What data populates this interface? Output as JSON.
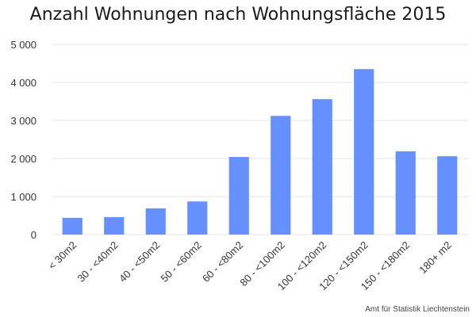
{
  "chart_data": {
    "type": "bar",
    "title": "Anzahl Wohnungen nach Wohnungsfläche 2015",
    "xlabel": "",
    "ylabel": "",
    "categories": [
      "< 30m2",
      "30 - <40m2",
      "40 - <50m2",
      "50 - <60m2",
      "60 - <80m2",
      "80 - <100m2",
      "100 - <120m2",
      "120 - <150m2",
      "150 - <180m2",
      "180+ m2"
    ],
    "values": [
      440,
      460,
      690,
      870,
      2040,
      3120,
      3560,
      4350,
      2190,
      2060
    ],
    "ylim": [
      0,
      5000
    ],
    "yticks": [
      0,
      1000,
      2000,
      3000,
      4000,
      5000
    ],
    "ytick_labels": [
      "0",
      "1 000",
      "2 000",
      "3 000",
      "4 000",
      "5 000"
    ],
    "grid": true,
    "bar_color": "#6690ff",
    "grid_color": "#e3e3e3",
    "source": "Amt für Statistik Liechtenstein"
  }
}
